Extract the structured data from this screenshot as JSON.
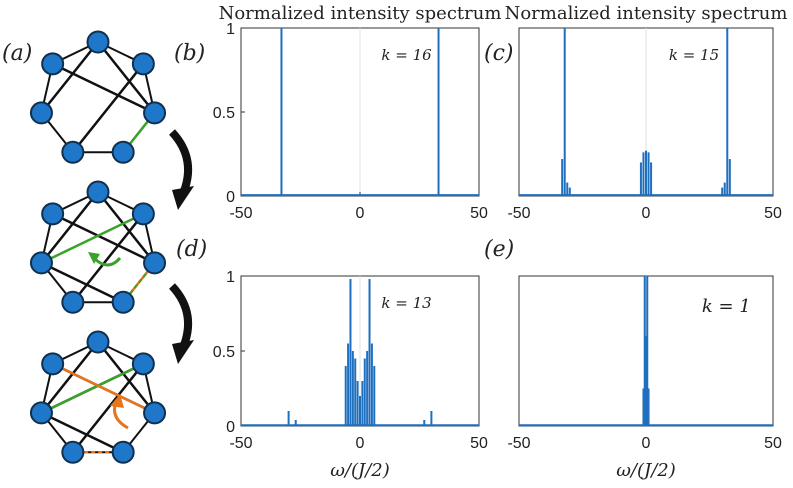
{
  "panel_labels": {
    "a": "(a)",
    "b": "(b)",
    "c": "(c)",
    "d": "(d)",
    "e": "(e)"
  },
  "colors": {
    "line": "#1f6fbf",
    "node_fill": "#1f77c9",
    "node_stroke": "#10304f",
    "green": "#3aa12a",
    "orange": "#e8741c",
    "black": "#111111"
  },
  "graph": {
    "nodes": 7,
    "arrow_green": "curved-arrow-green",
    "arrow_orange": "curved-arrow-orange"
  },
  "chart_data": [
    {
      "type": "line",
      "id": "b",
      "title": "Normalized intensity spectrum",
      "annotation": "k = 16",
      "xlim": [
        -50,
        50
      ],
      "ylim": [
        0,
        1
      ],
      "xticks": [
        -50,
        0,
        50
      ],
      "yticks": [
        0,
        0.5,
        1
      ],
      "xlabel": "",
      "peaks": [
        {
          "x": -33,
          "h": 1.0
        },
        {
          "x": 33,
          "h": 1.0
        }
      ]
    },
    {
      "type": "line",
      "id": "c",
      "title": "Normalized intensity spectrum",
      "annotation": "k = 15",
      "xlim": [
        -50,
        50
      ],
      "ylim": [
        0,
        1
      ],
      "xticks": [
        -50,
        0,
        50
      ],
      "yticks": [],
      "xlabel": "",
      "peaks": [
        {
          "x": -33,
          "h": 0.22
        },
        {
          "x": -32,
          "h": 1.0
        },
        {
          "x": -31,
          "h": 0.08
        },
        {
          "x": -30,
          "h": 0.05
        },
        {
          "x": -2,
          "h": 0.2
        },
        {
          "x": -1,
          "h": 0.26
        },
        {
          "x": 0,
          "h": 0.27
        },
        {
          "x": 1,
          "h": 0.26
        },
        {
          "x": 2,
          "h": 0.2
        },
        {
          "x": 30,
          "h": 0.05
        },
        {
          "x": 31,
          "h": 0.08
        },
        {
          "x": 32,
          "h": 1.0
        },
        {
          "x": 33,
          "h": 0.22
        }
      ]
    },
    {
      "type": "line",
      "id": "d",
      "title": "",
      "annotation": "k = 13",
      "xlim": [
        -50,
        50
      ],
      "ylim": [
        0,
        1
      ],
      "xticks": [
        -50,
        0,
        50
      ],
      "yticks": [
        0,
        0.5,
        1
      ],
      "xlabel": "ω/(J/2)",
      "peaks": [
        {
          "x": -30,
          "h": 0.1
        },
        {
          "x": -27,
          "h": 0.04
        },
        {
          "x": -6,
          "h": 0.4
        },
        {
          "x": -5,
          "h": 0.55
        },
        {
          "x": -4,
          "h": 0.98
        },
        {
          "x": -3,
          "h": 0.5
        },
        {
          "x": -2,
          "h": 0.45
        },
        {
          "x": -1,
          "h": 0.3
        },
        {
          "x": 0,
          "h": 0.2
        },
        {
          "x": 1,
          "h": 0.3
        },
        {
          "x": 2,
          "h": 0.45
        },
        {
          "x": 3,
          "h": 0.5
        },
        {
          "x": 4,
          "h": 0.98
        },
        {
          "x": 5,
          "h": 0.55
        },
        {
          "x": 6,
          "h": 0.4
        },
        {
          "x": 27,
          "h": 0.04
        },
        {
          "x": 30,
          "h": 0.1
        }
      ]
    },
    {
      "type": "line",
      "id": "e",
      "title": "",
      "annotation": "k = 1",
      "xlim": [
        -50,
        50
      ],
      "ylim": [
        0,
        1
      ],
      "xticks": [
        -50,
        0,
        50
      ],
      "yticks": [],
      "xlabel": "ω/(J/2)",
      "peaks": [
        {
          "x": -1,
          "h": 0.25
        },
        {
          "x": -0.5,
          "h": 1.0
        },
        {
          "x": 0,
          "h": 0.6
        },
        {
          "x": 0.5,
          "h": 1.0
        },
        {
          "x": 1,
          "h": 0.25
        }
      ]
    }
  ]
}
